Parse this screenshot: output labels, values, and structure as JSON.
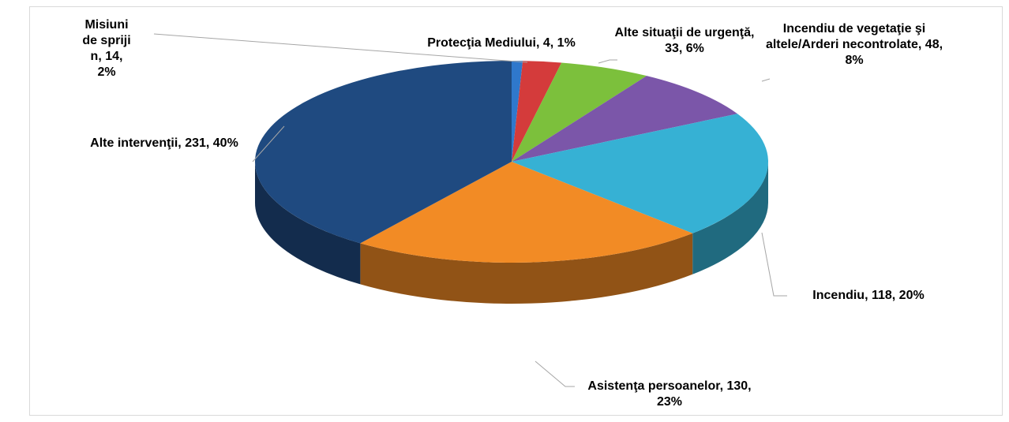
{
  "chart_data": {
    "type": "pie3d",
    "categories": [
      "Protecţia Mediului",
      "Misiuni de sprijin",
      "Alte situaţii de urgenţă",
      "Incendiu de vegetaţie şi altele/Arderi necontrolate",
      "Incendiu",
      "Asistenţa persoanelor",
      "Alte intervenţii"
    ],
    "values": [
      4,
      14,
      33,
      48,
      118,
      130,
      231
    ],
    "value_labels": [
      "Protecţia Mediului, 4, 1%",
      "Misiuni de sprijin, 14, 2%",
      "Alte situaţii de urgenţă, 33, 6%",
      "Incendiu de vegetaţie şi altele/Arderi necontrolate, 48, 8%",
      "Incendiu, 118, 20%",
      "Asistenţa persoanelor, 130, 23%",
      "Alte intervenţii, 231, 40%"
    ],
    "colors": [
      "#2f78cc",
      "#d43b3b",
      "#7cc03c",
      "#7b56a9",
      "#36b1d4",
      "#f28b25",
      "#1f4a80"
    ]
  }
}
